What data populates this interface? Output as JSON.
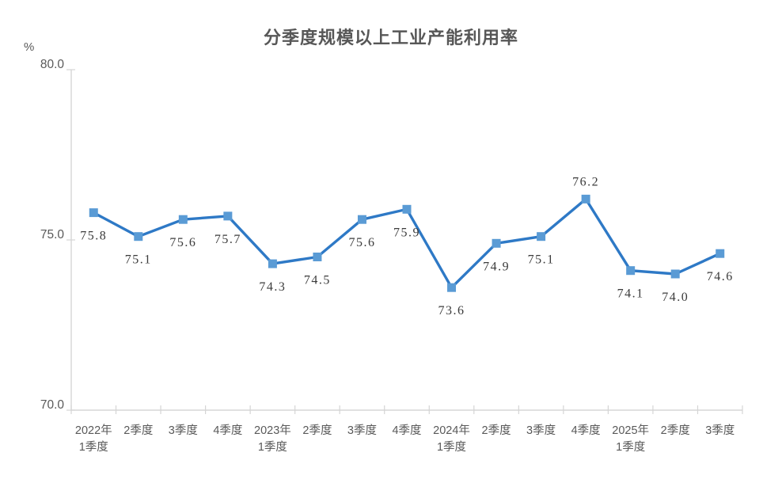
{
  "chart_data": {
    "type": "line",
    "title": "分季度规模以上工业产能利用率",
    "ylabel": "%",
    "categories": [
      "2022年\n1季度",
      "2季度",
      "3季度",
      "4季度",
      "2023年\n1季度",
      "2季度",
      "3季度",
      "4季度",
      "2024年\n1季度",
      "2季度",
      "3季度",
      "4季度",
      "2025年\n1季度",
      "2季度",
      "3季度"
    ],
    "values": [
      75.8,
      75.1,
      75.6,
      75.7,
      74.3,
      74.5,
      75.6,
      75.9,
      73.6,
      74.9,
      75.1,
      76.2,
      74.1,
      74.0,
      74.6
    ],
    "data_labels": [
      "75.8",
      "75.1",
      "75.6",
      "75.7",
      "74.3",
      "74.5",
      "75.6",
      "75.9",
      "73.6",
      "74.9",
      "75.1",
      "76.2",
      "74.1",
      "74.0",
      "74.6"
    ],
    "label_position": [
      "below",
      "below",
      "below",
      "below",
      "below",
      "below",
      "below",
      "below",
      "below",
      "below",
      "below",
      "above",
      "below",
      "below",
      "below"
    ],
    "ylim": [
      70.0,
      80.0
    ],
    "yticks": [
      "70.0",
      "75.0",
      "80.0"
    ],
    "grid": false,
    "legend": "none",
    "marker": "square",
    "colors": {
      "line": "#2E79C6",
      "marker": "#5A9BD5",
      "axis": "#D5D5D5",
      "tick_label": "#595959",
      "title": "#575757",
      "data_label": "#3B3B3B",
      "background": "#FFFFFF"
    }
  }
}
